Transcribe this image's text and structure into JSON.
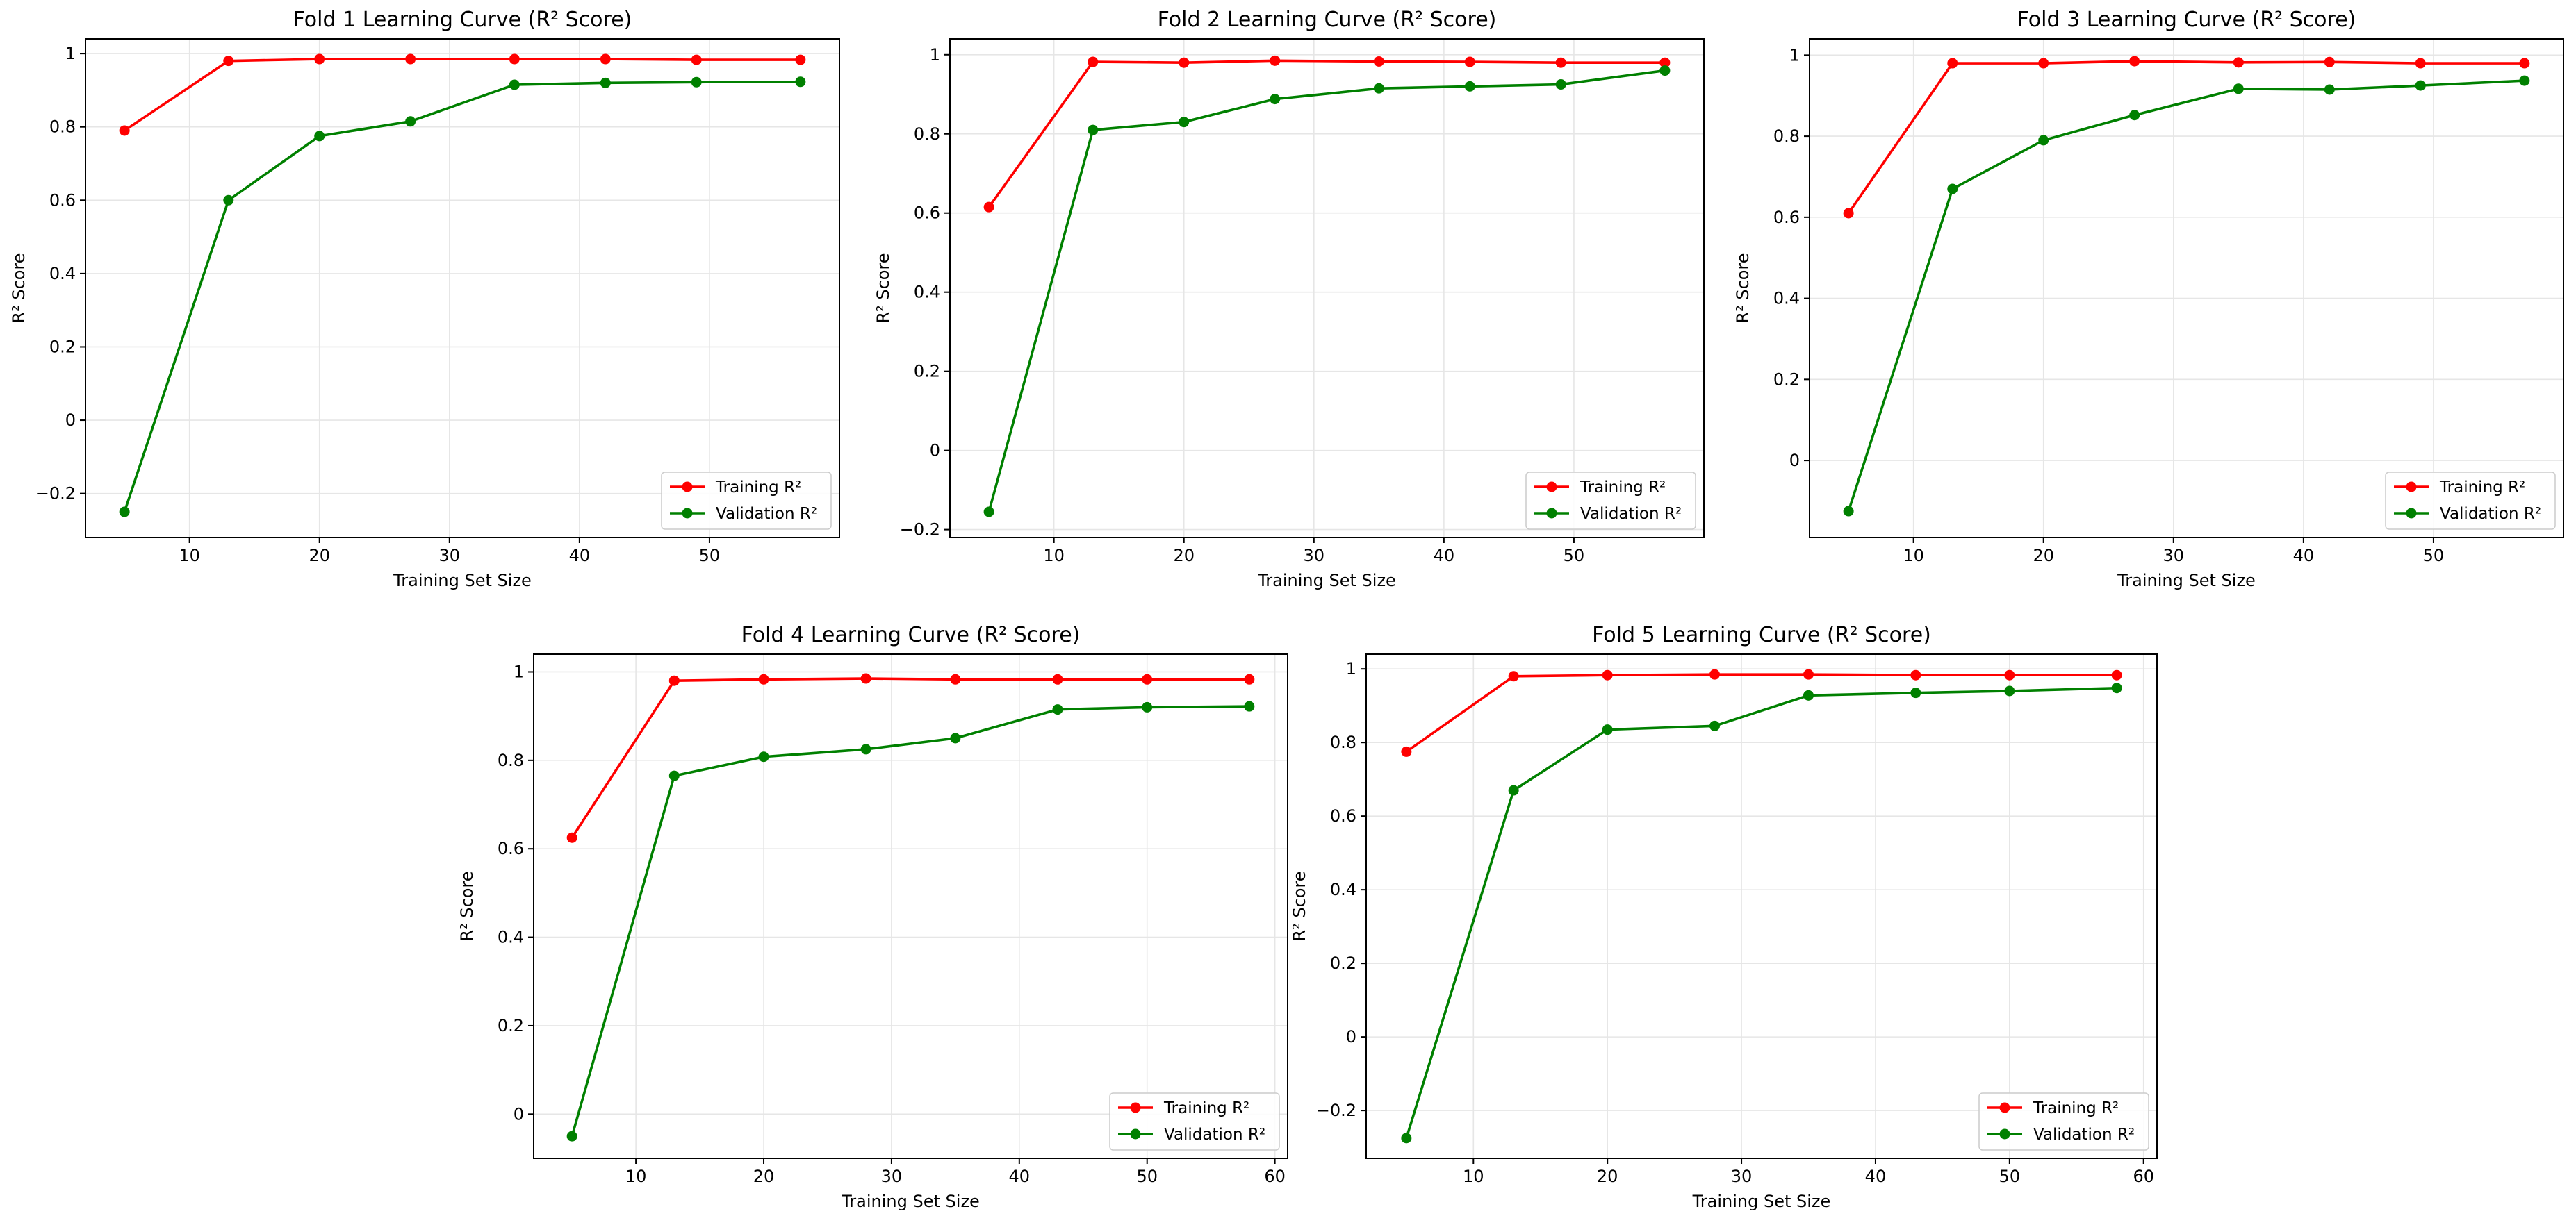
{
  "chart_data": [
    {
      "type": "line",
      "title": "Fold 1 Learning Curve (R² Score)",
      "xlabel": "Training Set Size",
      "ylabel": "R² Score",
      "xlim": [
        2,
        60
      ],
      "ylim": [
        -0.32,
        1.04
      ],
      "xticks": [
        10,
        20,
        30,
        40,
        50
      ],
      "yticks": [
        -0.2,
        0.0,
        0.2,
        0.4,
        0.6,
        0.8,
        1.0
      ],
      "grid": true,
      "legend": "lower-right",
      "x": [
        5,
        13,
        20,
        27,
        35,
        42,
        49,
        57
      ],
      "series": [
        {
          "name": "Training R²",
          "color": "#ff0000",
          "values": [
            0.79,
            0.98,
            0.985,
            0.985,
            0.985,
            0.985,
            0.983,
            0.983
          ]
        },
        {
          "name": "Validation R²",
          "color": "#008000",
          "values": [
            -0.25,
            0.6,
            0.775,
            0.815,
            0.915,
            0.92,
            0.922,
            0.923
          ]
        }
      ]
    },
    {
      "type": "line",
      "title": "Fold 2 Learning Curve (R² Score)",
      "xlabel": "Training Set Size",
      "ylabel": "R² Score",
      "xlim": [
        2,
        60
      ],
      "ylim": [
        -0.22,
        1.04
      ],
      "xticks": [
        10,
        20,
        30,
        40,
        50
      ],
      "yticks": [
        -0.2,
        0.0,
        0.2,
        0.4,
        0.6,
        0.8,
        1.0
      ],
      "grid": true,
      "legend": "lower-right",
      "x": [
        5,
        13,
        20,
        27,
        35,
        42,
        49,
        57
      ],
      "series": [
        {
          "name": "Training R²",
          "color": "#ff0000",
          "values": [
            0.615,
            0.982,
            0.98,
            0.985,
            0.983,
            0.982,
            0.98,
            0.98
          ]
        },
        {
          "name": "Validation R²",
          "color": "#008000",
          "values": [
            -0.155,
            0.81,
            0.83,
            0.888,
            0.915,
            0.92,
            0.925,
            0.96
          ]
        }
      ]
    },
    {
      "type": "line",
      "title": "Fold 3 Learning Curve (R² Score)",
      "xlabel": "Training Set Size",
      "ylabel": "R² Score",
      "xlim": [
        2,
        60
      ],
      "ylim": [
        -0.19,
        1.04
      ],
      "xticks": [
        10,
        20,
        30,
        40,
        50
      ],
      "yticks": [
        0.0,
        0.2,
        0.4,
        0.6,
        0.8,
        1.0
      ],
      "grid": true,
      "legend": "lower-right",
      "x": [
        5,
        13,
        20,
        27,
        35,
        42,
        49,
        57
      ],
      "series": [
        {
          "name": "Training R²",
          "color": "#ff0000",
          "values": [
            0.61,
            0.98,
            0.98,
            0.985,
            0.982,
            0.983,
            0.98,
            0.98
          ]
        },
        {
          "name": "Validation R²",
          "color": "#008000",
          "values": [
            -0.125,
            0.67,
            0.79,
            0.852,
            0.917,
            0.915,
            0.925,
            0.937
          ]
        }
      ]
    },
    {
      "type": "line",
      "title": "Fold 4 Learning Curve (R² Score)",
      "xlabel": "Training Set Size",
      "ylabel": "R² Score",
      "xlim": [
        2,
        61
      ],
      "ylim": [
        -0.1,
        1.04
      ],
      "xticks": [
        10,
        20,
        30,
        40,
        50,
        60
      ],
      "yticks": [
        0.0,
        0.2,
        0.4,
        0.6,
        0.8,
        1.0
      ],
      "grid": true,
      "legend": "lower-right",
      "x": [
        5,
        13,
        20,
        28,
        35,
        43,
        50,
        58
      ],
      "series": [
        {
          "name": "Training R²",
          "color": "#ff0000",
          "values": [
            0.625,
            0.98,
            0.983,
            0.985,
            0.983,
            0.983,
            0.983,
            0.983
          ]
        },
        {
          "name": "Validation R²",
          "color": "#008000",
          "values": [
            -0.05,
            0.765,
            0.808,
            0.825,
            0.85,
            0.915,
            0.92,
            0.922
          ]
        }
      ]
    },
    {
      "type": "line",
      "title": "Fold 5 Learning Curve (R² Score)",
      "xlabel": "Training Set Size",
      "ylabel": "R² Score",
      "xlim": [
        2,
        61
      ],
      "ylim": [
        -0.33,
        1.04
      ],
      "xticks": [
        10,
        20,
        30,
        40,
        50,
        60
      ],
      "yticks": [
        -0.2,
        0.0,
        0.2,
        0.4,
        0.6,
        0.8,
        1.0
      ],
      "grid": true,
      "legend": "lower-right",
      "x": [
        5,
        13,
        20,
        28,
        35,
        43,
        50,
        58
      ],
      "series": [
        {
          "name": "Training R²",
          "color": "#ff0000",
          "values": [
            0.775,
            0.98,
            0.983,
            0.985,
            0.985,
            0.983,
            0.983,
            0.983
          ]
        },
        {
          "name": "Validation R²",
          "color": "#008000",
          "values": [
            -0.275,
            0.67,
            0.835,
            0.845,
            0.928,
            0.935,
            0.94,
            0.948
          ]
        }
      ]
    }
  ]
}
